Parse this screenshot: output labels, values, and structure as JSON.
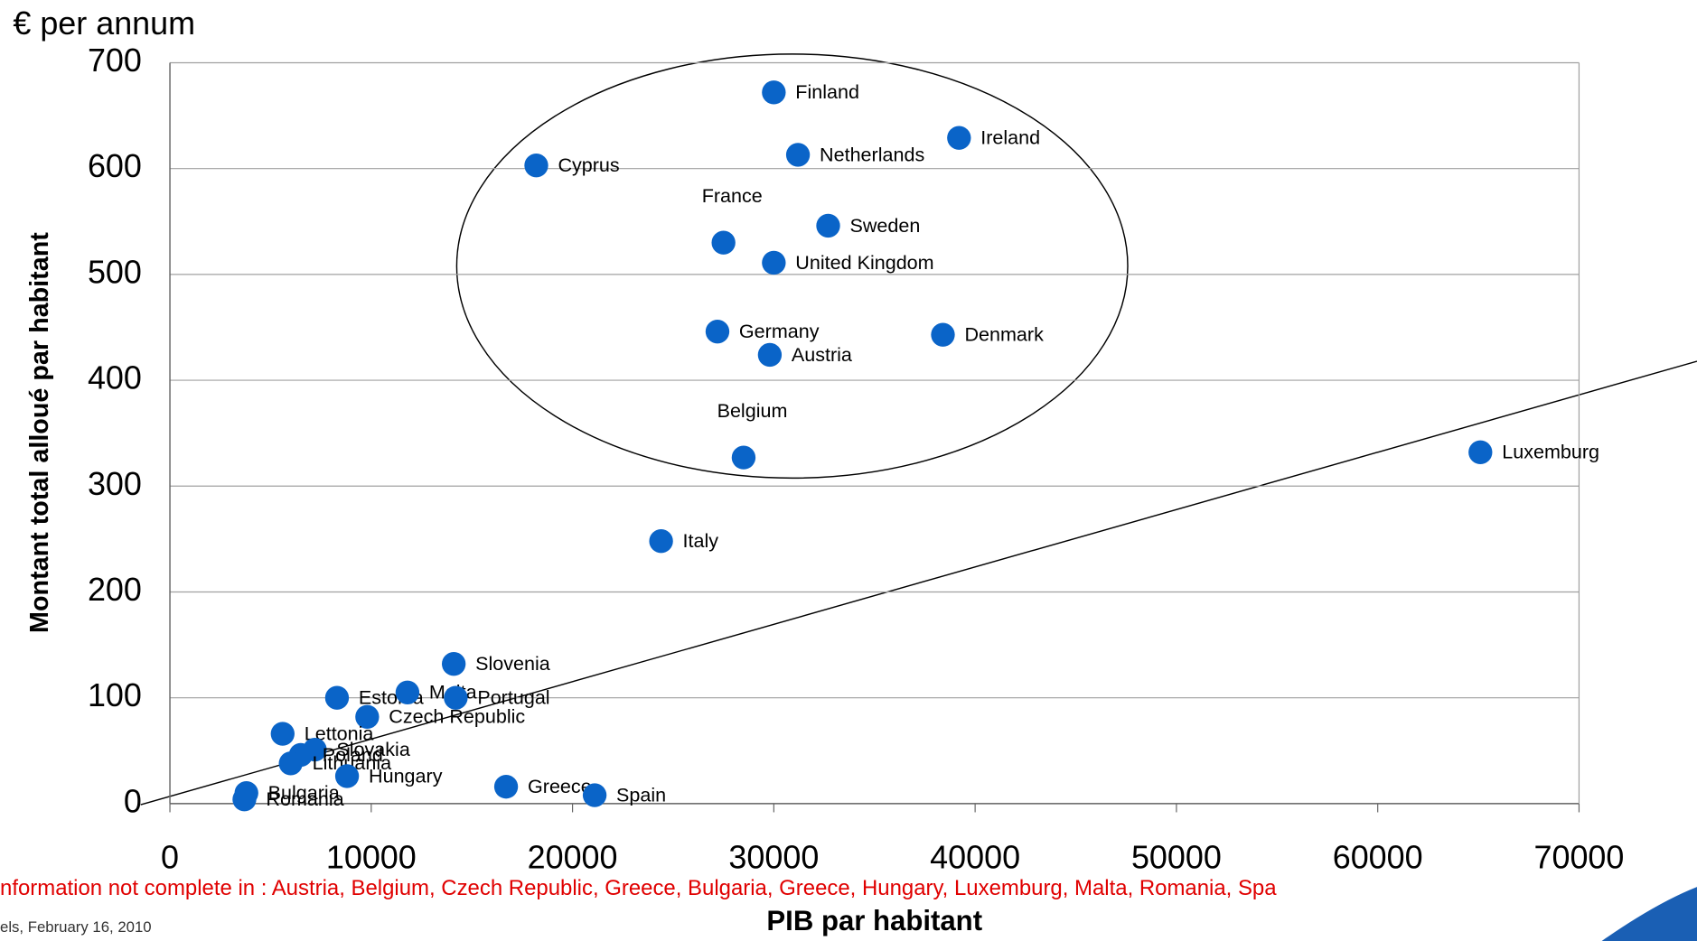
{
  "chart_data": {
    "type": "scatter",
    "y_unit_label": "€ per annum",
    "y_label": "Montant total alloué par habitant",
    "x_label": "PIB par habitant",
    "footnote": "nformation not complete in : Austria, Belgium, Czech Republic, Greece, Bulgaria, Greece, Hungary, Luxemburg, Malta, Romania, Spa",
    "footer": "els, February 16, 2010",
    "color": "#0a64c8",
    "labels": [
      "Finland",
      "Ireland",
      "Netherlands",
      "Cyprus",
      "France",
      "Sweden",
      "United Kingdom",
      "Germany",
      "Denmark",
      "Austria",
      "Belgium",
      "Luxemburg",
      "Italy",
      "Slovenia",
      "Estonia",
      "Malta",
      "Portugal",
      "Czech Republic",
      "Lettonia",
      "Slovakia",
      "Poland",
      "Lithuania",
      "Hungary",
      "Greece",
      "Spain",
      "Bulgaria",
      "Romania"
    ],
    "x": [
      30000,
      39200,
      31200,
      18200,
      27500,
      32700,
      30000,
      27200,
      38400,
      29800,
      28500,
      65100,
      24400,
      14100,
      8300,
      11800,
      14200,
      9800,
      5600,
      7200,
      6500,
      6000,
      8800,
      16700,
      21100,
      3800,
      3700
    ],
    "values": [
      672,
      629,
      613,
      603,
      530,
      546,
      511,
      446,
      443,
      424,
      327,
      332,
      248,
      132,
      100,
      105,
      100,
      82,
      66,
      51,
      46,
      38,
      26,
      16,
      8,
      10,
      4
    ],
    "xlim": [
      0,
      70000
    ],
    "xticks": [
      0,
      10000,
      20000,
      30000,
      40000,
      50000,
      60000,
      70000
    ],
    "ylim": [
      0,
      700
    ],
    "yticks": [
      0,
      100,
      200,
      300,
      400,
      500,
      600,
      700
    ],
    "grid": true
  }
}
